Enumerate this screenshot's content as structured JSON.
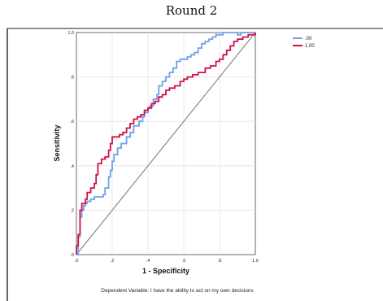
{
  "page": {
    "title": "Round 2"
  },
  "chart_data": {
    "type": "line",
    "title": "",
    "xlabel": "1 - Specificity",
    "ylabel": "Sensitivity",
    "caption": "Dependent Variable: I have the ability to act on my own decisions",
    "xlim": [
      0,
      1
    ],
    "ylim": [
      0,
      1
    ],
    "grid": true,
    "legend_position": "top-right",
    "xticks": [
      ".0",
      ".2",
      ".4",
      ".6",
      ".8",
      "1.0"
    ],
    "yticks": [
      ".0",
      ".2",
      ".4",
      ".6",
      ".8",
      "1.0"
    ],
    "reference_line": {
      "x": [
        0,
        1
      ],
      "y": [
        0,
        1
      ],
      "color": "#888888"
    },
    "series": [
      {
        "name": ".00",
        "color": "#6fa0e8",
        "x": [
          0,
          0.01,
          0.01,
          0.02,
          0.02,
          0.03,
          0.04,
          0.05,
          0.06,
          0.08,
          0.1,
          0.13,
          0.15,
          0.16,
          0.18,
          0.19,
          0.2,
          0.21,
          0.23,
          0.25,
          0.28,
          0.3,
          0.32,
          0.35,
          0.37,
          0.38,
          0.4,
          0.41,
          0.43,
          0.45,
          0.46,
          0.48,
          0.5,
          0.52,
          0.54,
          0.56,
          0.58,
          0.6,
          0.62,
          0.64,
          0.66,
          0.68,
          0.7,
          0.72,
          0.74,
          0.76,
          0.78,
          0.8,
          0.82,
          0.85,
          0.88,
          0.9,
          0.92,
          0.95,
          1.0
        ],
        "y": [
          0,
          0.03,
          0.08,
          0.13,
          0.17,
          0.2,
          0.22,
          0.23,
          0.24,
          0.25,
          0.26,
          0.26,
          0.27,
          0.3,
          0.35,
          0.38,
          0.42,
          0.45,
          0.48,
          0.5,
          0.53,
          0.55,
          0.58,
          0.6,
          0.62,
          0.64,
          0.66,
          0.67,
          0.7,
          0.72,
          0.76,
          0.78,
          0.8,
          0.82,
          0.84,
          0.87,
          0.88,
          0.88,
          0.89,
          0.9,
          0.91,
          0.93,
          0.95,
          0.96,
          0.97,
          0.98,
          0.99,
          0.99,
          1.0,
          1.0,
          1.0,
          0.99,
          1.0,
          1.0,
          1.0
        ]
      },
      {
        "name": "1.00",
        "color": "#d0104a",
        "x": [
          0,
          0.0,
          0.01,
          0.02,
          0.02,
          0.03,
          0.05,
          0.06,
          0.08,
          0.1,
          0.11,
          0.12,
          0.14,
          0.16,
          0.18,
          0.19,
          0.2,
          0.22,
          0.24,
          0.26,
          0.28,
          0.3,
          0.32,
          0.34,
          0.36,
          0.38,
          0.4,
          0.42,
          0.44,
          0.46,
          0.48,
          0.5,
          0.52,
          0.55,
          0.58,
          0.6,
          0.62,
          0.65,
          0.68,
          0.7,
          0.72,
          0.75,
          0.78,
          0.8,
          0.82,
          0.84,
          0.86,
          0.88,
          0.9,
          0.93,
          0.96,
          1.0
        ],
        "y": [
          0,
          0.04,
          0.09,
          0.15,
          0.2,
          0.23,
          0.25,
          0.28,
          0.3,
          0.32,
          0.36,
          0.41,
          0.43,
          0.44,
          0.47,
          0.5,
          0.53,
          0.53,
          0.54,
          0.55,
          0.57,
          0.59,
          0.61,
          0.62,
          0.63,
          0.65,
          0.66,
          0.68,
          0.69,
          0.71,
          0.72,
          0.74,
          0.75,
          0.76,
          0.78,
          0.79,
          0.8,
          0.81,
          0.82,
          0.82,
          0.84,
          0.85,
          0.87,
          0.88,
          0.9,
          0.92,
          0.94,
          0.96,
          0.97,
          0.98,
          0.99,
          1.0
        ]
      }
    ]
  }
}
